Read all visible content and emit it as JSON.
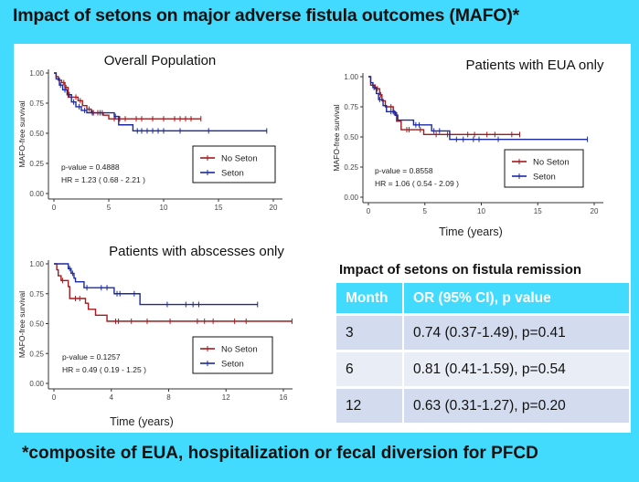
{
  "header": {
    "title": "Impact of setons on major adverse fistula outcomes (MAFO)*"
  },
  "footnote": "*composite of EUA, hospitalization or fecal diversion for PFCD",
  "colors": {
    "background": "#42dbfd",
    "no_seton": "#a4191b",
    "seton": "#1a2a9e",
    "table_header": "#42dbfd",
    "table_row_dark": "#d2dcee",
    "table_row_light": "#e9eef6"
  },
  "chart_data": [
    {
      "type": "line",
      "subtype": "kaplan-meier",
      "title": "Overall Population",
      "xlabel": "",
      "ylabel": "MAFO-free survival",
      "xlim": [
        0,
        20
      ],
      "ylim": [
        0,
        1
      ],
      "xticks": [
        "0",
        "5",
        "10",
        "15",
        "20"
      ],
      "yticks": [
        "0.00",
        "0.25",
        "0.50",
        "0.75",
        "1.00"
      ],
      "legend": {
        "position": "bottom-right",
        "entries": [
          "No Seton",
          "Seton"
        ]
      },
      "annotations": [
        "p-value = 0.4888",
        "HR = 1.23 ( 0.68 - 2.21 )"
      ],
      "series": [
        {
          "name": "No Seton",
          "steps": [
            [
              0,
              1.0
            ],
            [
              0.2,
              0.97
            ],
            [
              0.4,
              0.94
            ],
            [
              0.7,
              0.92
            ],
            [
              1.0,
              0.88
            ],
            [
              1.3,
              0.8
            ],
            [
              2.2,
              0.77
            ],
            [
              2.6,
              0.73
            ],
            [
              3.0,
              0.7
            ],
            [
              3.4,
              0.67
            ],
            [
              4.5,
              0.65
            ],
            [
              5.0,
              0.62
            ],
            [
              13.4,
              0.62
            ]
          ],
          "censor": [
            0.5,
            0.9,
            1.1,
            2.0,
            2.4,
            3.2,
            3.6,
            4.0,
            4.4,
            5.5,
            6.0,
            6.5,
            7.5,
            8.0,
            9.0,
            10.0,
            11.0,
            11.5,
            12.0,
            12.5,
            13.4
          ]
        },
        {
          "name": "Seton",
          "steps": [
            [
              0,
              1.0
            ],
            [
              0.2,
              0.95
            ],
            [
              0.5,
              0.9
            ],
            [
              0.8,
              0.86
            ],
            [
              1.2,
              0.82
            ],
            [
              1.6,
              0.76
            ],
            [
              2.0,
              0.72
            ],
            [
              2.5,
              0.69
            ],
            [
              3.0,
              0.67
            ],
            [
              5.5,
              0.64
            ],
            [
              5.9,
              0.57
            ],
            [
              7.2,
              0.52
            ],
            [
              19.4,
              0.52
            ]
          ],
          "censor": [
            0.6,
            1.0,
            1.4,
            1.8,
            2.3,
            2.8,
            3.5,
            4.2,
            5.6,
            7.6,
            8.0,
            8.5,
            9.0,
            9.5,
            10.0,
            11.5,
            14.1,
            19.4
          ]
        }
      ]
    },
    {
      "type": "line",
      "subtype": "kaplan-meier",
      "title": "Patients with EUA only",
      "xlabel": "Time (years)",
      "ylabel": "MAFO-free survival",
      "xlim": [
        0,
        20
      ],
      "ylim": [
        0,
        1
      ],
      "xticks": [
        "0",
        "5",
        "10",
        "15",
        "20"
      ],
      "yticks": [
        "0.00",
        "0.25",
        "0.50",
        "0.75",
        "1.00"
      ],
      "legend": {
        "position": "bottom-right",
        "entries": [
          "No Seton",
          "Seton"
        ]
      },
      "annotations": [
        "p-value = 0.8558",
        "HR = 1.06 ( 0.54 - 2.09 )"
      ],
      "series": [
        {
          "name": "No Seton",
          "steps": [
            [
              0,
              1.0
            ],
            [
              0.2,
              0.93
            ],
            [
              0.6,
              0.9
            ],
            [
              1.0,
              0.85
            ],
            [
              1.2,
              0.8
            ],
            [
              1.5,
              0.75
            ],
            [
              2.2,
              0.7
            ],
            [
              2.5,
              0.63
            ],
            [
              2.9,
              0.56
            ],
            [
              4.9,
              0.52
            ],
            [
              13.4,
              0.52
            ]
          ],
          "censor": [
            0.4,
            0.8,
            1.1,
            2.0,
            2.3,
            3.4,
            3.6,
            4.6,
            6.0,
            7.0,
            7.2,
            8.8,
            9.4,
            10.5,
            11.2,
            12.7,
            13.4
          ]
        },
        {
          "name": "Seton",
          "steps": [
            [
              0,
              1.0
            ],
            [
              0.2,
              0.95
            ],
            [
              0.4,
              0.91
            ],
            [
              0.7,
              0.86
            ],
            [
              0.9,
              0.81
            ],
            [
              1.3,
              0.76
            ],
            [
              1.6,
              0.71
            ],
            [
              2.4,
              0.68
            ],
            [
              2.6,
              0.64
            ],
            [
              4.0,
              0.6
            ],
            [
              5.6,
              0.55
            ],
            [
              7.2,
              0.48
            ],
            [
              19.4,
              0.48
            ]
          ],
          "censor": [
            0.5,
            1.0,
            2.0,
            2.2,
            4.2,
            4.5,
            5.8,
            6.3,
            7.8,
            8.4,
            9.3,
            9.8,
            11.5,
            19.4
          ]
        }
      ]
    },
    {
      "type": "line",
      "subtype": "kaplan-meier",
      "title": "Patients with abscesses only",
      "xlabel": "Time (years)",
      "ylabel": "MAFO-free survival",
      "xlim": [
        0,
        16
      ],
      "ylim": [
        0,
        1
      ],
      "xticks": [
        "0",
        "4",
        "8",
        "12",
        "16"
      ],
      "yticks": [
        "0.00",
        "0.25",
        "0.50",
        "0.75",
        "1.00"
      ],
      "legend": {
        "position": "bottom-right",
        "entries": [
          "No Seton",
          "Seton"
        ]
      },
      "annotations": [
        "p-value = 0.1257",
        "HR = 0.49 ( 0.19 - 1.25 )"
      ],
      "series": [
        {
          "name": "No Seton",
          "steps": [
            [
              0,
              1.0
            ],
            [
              0.2,
              0.95
            ],
            [
              0.3,
              0.9
            ],
            [
              0.5,
              0.86
            ],
            [
              1.0,
              0.81
            ],
            [
              1.1,
              0.71
            ],
            [
              2.2,
              0.67
            ],
            [
              2.4,
              0.62
            ],
            [
              2.9,
              0.57
            ],
            [
              3.7,
              0.52
            ],
            [
              16.6,
              0.52
            ]
          ],
          "censor": [
            0.6,
            1.5,
            1.8,
            4.3,
            4.5,
            5.4,
            6.5,
            8.1,
            10.0,
            10.5,
            11.1,
            12.6,
            13.4,
            16.6
          ]
        },
        {
          "name": "Seton",
          "steps": [
            [
              0,
              1.0
            ],
            [
              1.0,
              0.96
            ],
            [
              1.2,
              0.92
            ],
            [
              1.4,
              0.88
            ],
            [
              1.5,
              0.85
            ],
            [
              2.1,
              0.8
            ],
            [
              4.2,
              0.75
            ],
            [
              6.0,
              0.66
            ],
            [
              14.2,
              0.66
            ]
          ],
          "censor": [
            1.1,
            1.3,
            2.3,
            3.3,
            3.7,
            4.4,
            4.6,
            5.6,
            7.9,
            9.2,
            9.7,
            10.1,
            14.2
          ]
        }
      ]
    }
  ],
  "remission_table": {
    "title": "Impact of setons on fistula remission",
    "headers": [
      "Month",
      "OR (95% CI), p value"
    ],
    "rows": [
      [
        "3",
        "0.74 (0.37-1.49), p=0.41"
      ],
      [
        "6",
        "0.81 (0.41-1.59), p=0.54"
      ],
      [
        "12",
        "0.63 (0.31-1.27), p=0.20"
      ]
    ]
  }
}
